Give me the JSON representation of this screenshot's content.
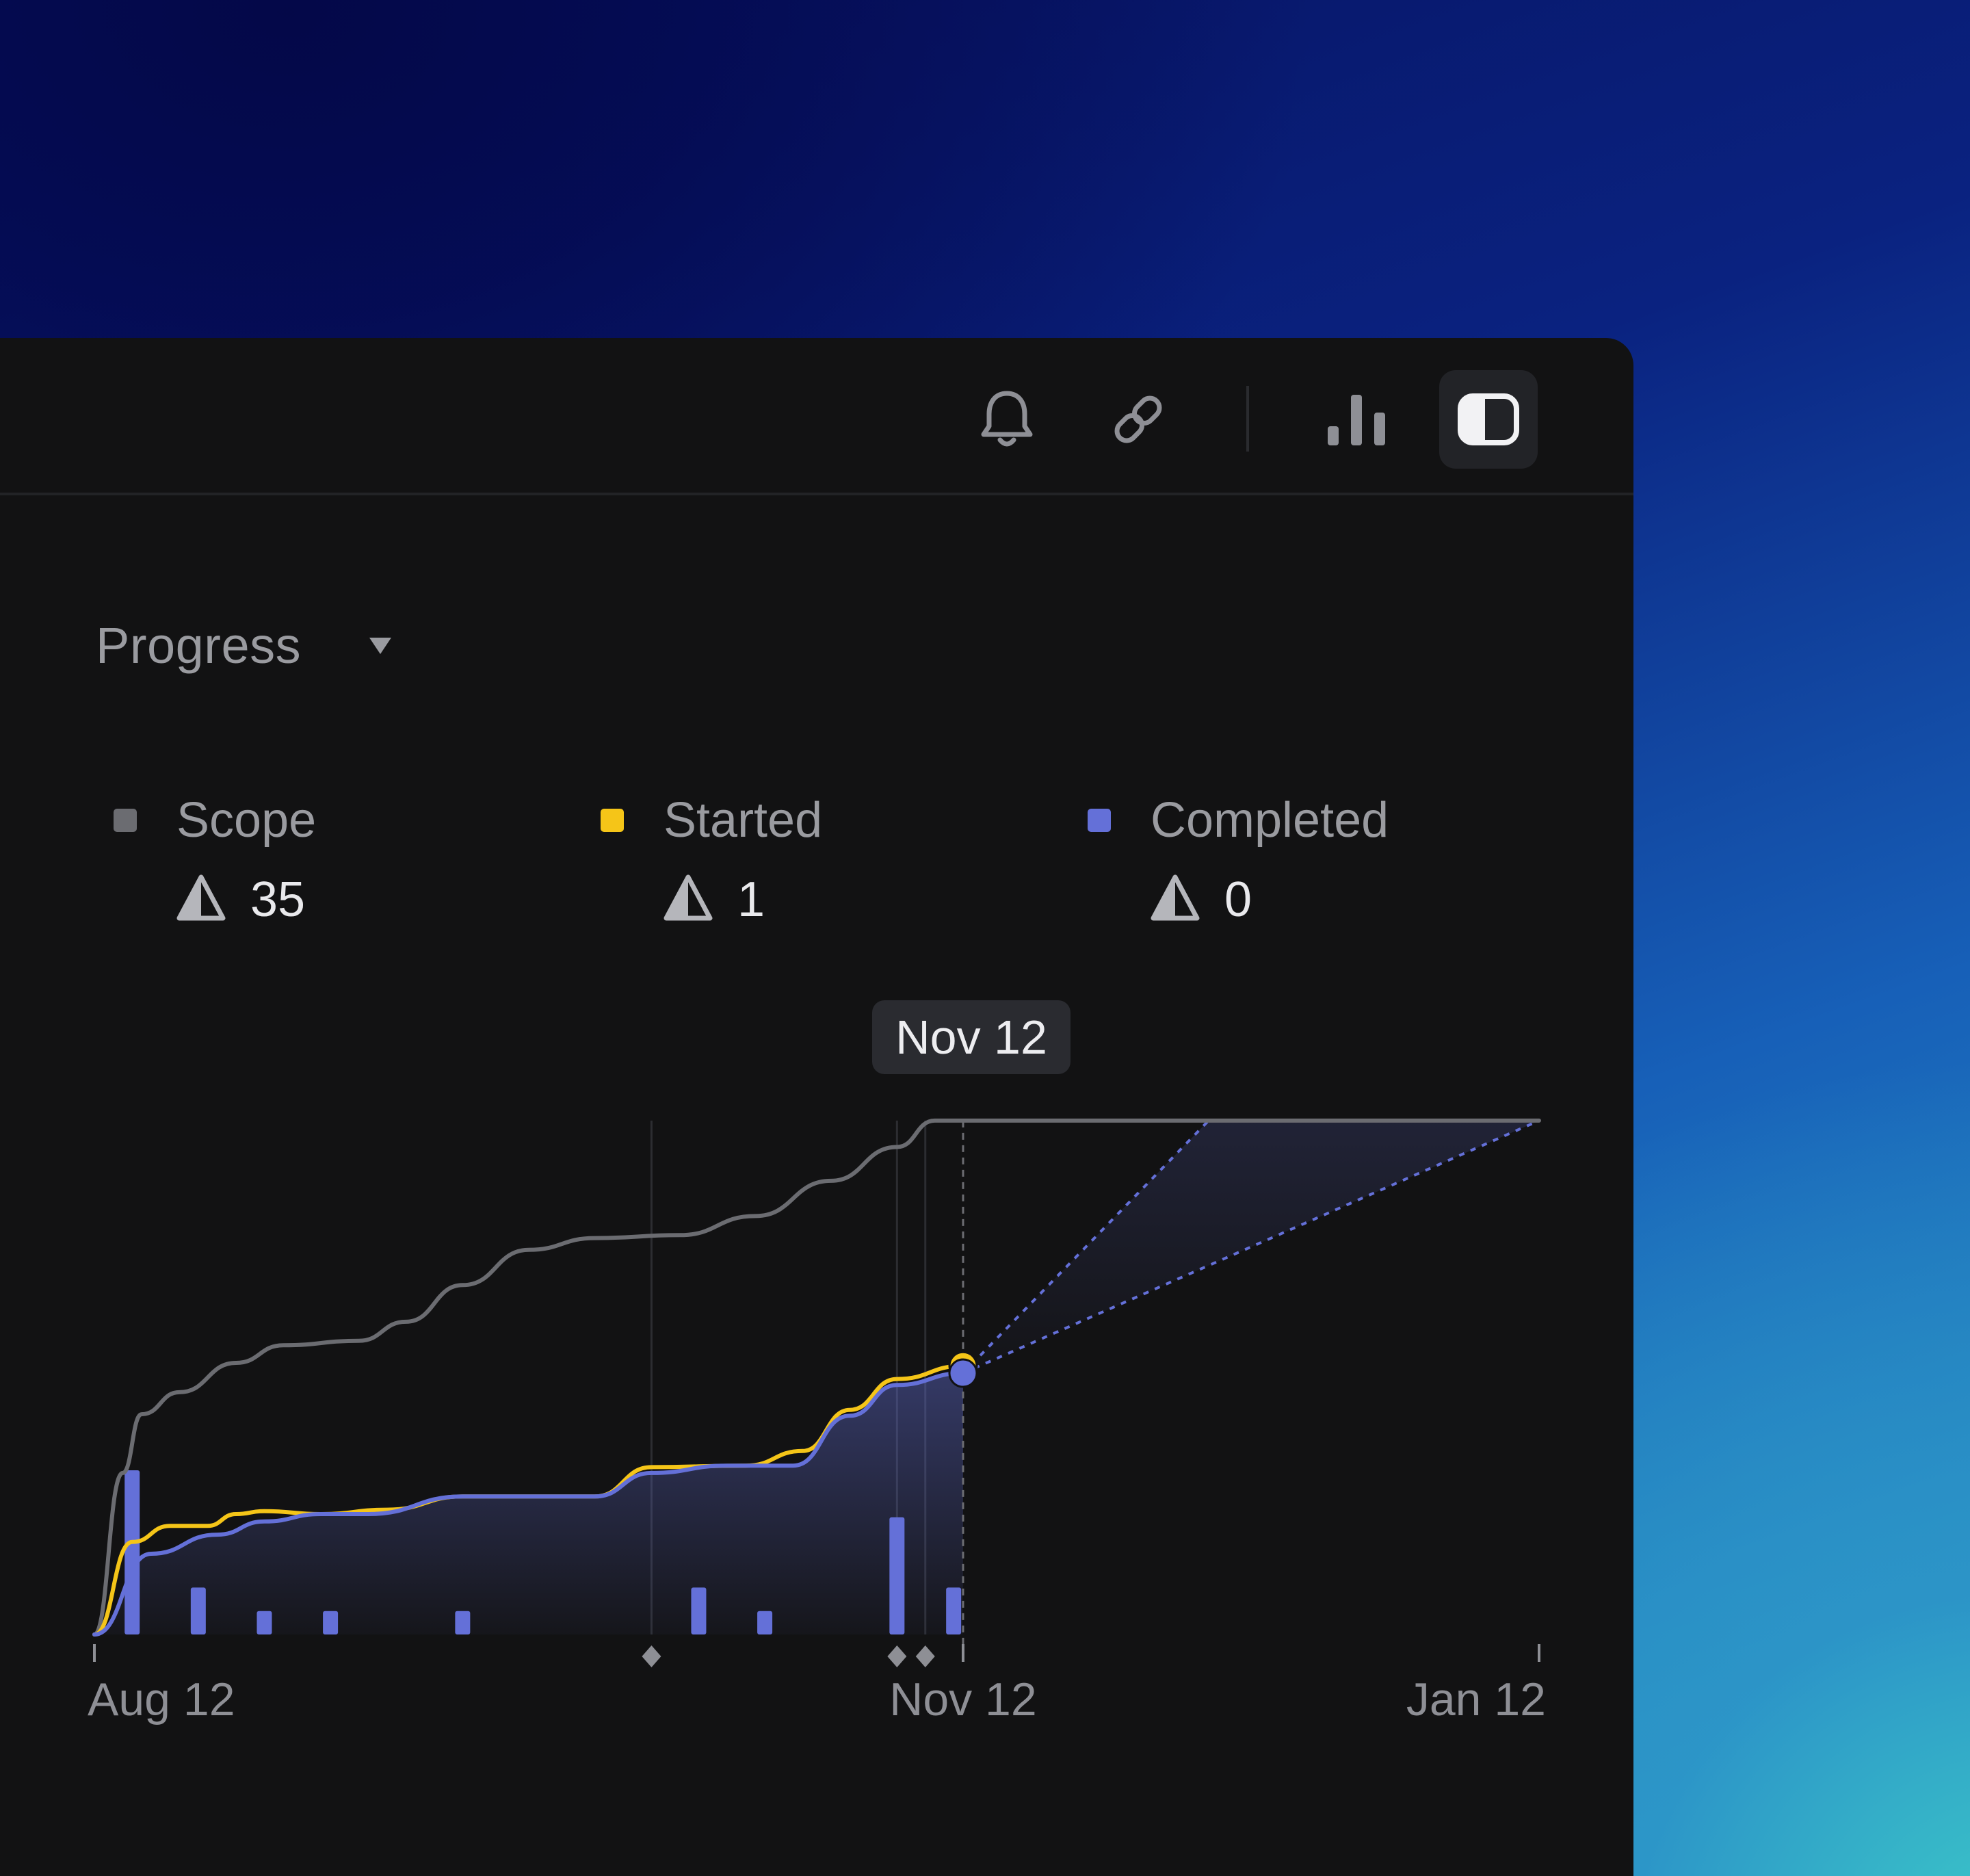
{
  "toolbar": {
    "icons": [
      "bell-icon",
      "link-icon",
      "bar-chart-icon",
      "sidebar-toggle-icon"
    ],
    "active": "sidebar-toggle-icon"
  },
  "progress": {
    "title": "Progress",
    "caret_icon": "caret-down-icon"
  },
  "legend": [
    {
      "label": "Scope",
      "value": "35",
      "color": "#6b6c71",
      "icon": "estimate-icon"
    },
    {
      "label": "Started",
      "value": "1",
      "color": "#f5c518",
      "icon": "estimate-icon"
    },
    {
      "label": "Completed",
      "value": "0",
      "color": "#6470d8",
      "icon": "estimate-icon"
    }
  ],
  "tooltip": {
    "label": "Nov 12"
  },
  "colors": {
    "panel_bg": "#121213",
    "scope": "#6b6c71",
    "started": "#f5c518",
    "completed": "#6470d8",
    "projection": "#6470d8",
    "text_muted": "#9a9ba0",
    "text_strong": "#e9e9ec"
  },
  "chart_data": {
    "type": "line",
    "x_axis": {
      "type": "date",
      "tick_labels": [
        "Aug 12",
        "Nov 12",
        "Jan 12"
      ],
      "ticks": [
        "2024-08-12",
        "2024-11-12",
        "2025-01-12"
      ],
      "range": [
        "2024-08-12",
        "2025-01-12"
      ]
    },
    "y_axis": {
      "range": [
        0,
        37
      ],
      "visible": false
    },
    "current_date": "2024-11-12",
    "series": [
      {
        "name": "Scope",
        "color": "#6b6c71",
        "points": [
          [
            "2024-08-12",
            0
          ],
          [
            "2024-08-15",
            11
          ],
          [
            "2024-08-17",
            15
          ],
          [
            "2024-08-21",
            16.5
          ],
          [
            "2024-08-27",
            18.5
          ],
          [
            "2024-09-01",
            19.7
          ],
          [
            "2024-09-09",
            20.0
          ],
          [
            "2024-09-14",
            21.3
          ],
          [
            "2024-09-20",
            23.8
          ],
          [
            "2024-09-27",
            26.2
          ],
          [
            "2024-10-04",
            27.0
          ],
          [
            "2024-10-13",
            27.2
          ],
          [
            "2024-10-21",
            28.5
          ],
          [
            "2024-10-29",
            30.9
          ],
          [
            "2024-11-05",
            33.2
          ],
          [
            "2024-11-09",
            35
          ],
          [
            "2025-01-12",
            35
          ]
        ]
      },
      {
        "name": "Started",
        "color": "#f5c518",
        "points": [
          [
            "2024-08-12",
            0
          ],
          [
            "2024-08-16",
            6.3
          ],
          [
            "2024-08-20",
            7.4
          ],
          [
            "2024-08-24",
            7.4
          ],
          [
            "2024-08-27",
            8.2
          ],
          [
            "2024-08-30",
            8.4
          ],
          [
            "2024-09-05",
            8.2
          ],
          [
            "2024-09-12",
            8.5
          ],
          [
            "2024-09-20",
            9.4
          ],
          [
            "2024-10-04",
            9.4
          ],
          [
            "2024-10-10",
            11.4
          ],
          [
            "2024-10-20",
            11.5
          ],
          [
            "2024-10-26",
            12.5
          ],
          [
            "2024-10-31",
            15.3
          ],
          [
            "2024-11-05",
            17.4
          ],
          [
            "2024-11-12",
            18.3
          ]
        ]
      },
      {
        "name": "Completed",
        "color": "#6470d8",
        "points": [
          [
            "2024-08-12",
            0
          ],
          [
            "2024-08-18",
            5.5
          ],
          [
            "2024-08-25",
            6.8
          ],
          [
            "2024-08-30",
            7.7
          ],
          [
            "2024-09-05",
            8.2
          ],
          [
            "2024-09-10",
            8.2
          ],
          [
            "2024-09-20",
            9.4
          ],
          [
            "2024-10-04",
            9.4
          ],
          [
            "2024-10-10",
            11.0
          ],
          [
            "2024-10-18",
            11.5
          ],
          [
            "2024-10-25",
            11.5
          ],
          [
            "2024-10-31",
            14.9
          ],
          [
            "2024-11-05",
            17.0
          ],
          [
            "2024-11-12",
            17.8
          ]
        ]
      }
    ],
    "bars": {
      "name": "Completed per day",
      "color": "#6470d8",
      "points": [
        [
          "2024-08-16",
          7.0
        ],
        [
          "2024-08-23",
          2.0
        ],
        [
          "2024-08-30",
          1.0
        ],
        [
          "2024-09-06",
          1.0
        ],
        [
          "2024-09-20",
          1.0
        ],
        [
          "2024-10-15",
          2.0
        ],
        [
          "2024-10-22",
          1.0
        ],
        [
          "2024-11-05",
          5.0
        ],
        [
          "2024-11-11",
          2.0
        ]
      ]
    },
    "projections": [
      {
        "from": [
          "2024-11-12",
          17.8
        ],
        "to": [
          "2024-12-08",
          35
        ]
      },
      {
        "from": [
          "2024-11-12",
          17.8
        ],
        "to": [
          "2025-01-12",
          35
        ]
      }
    ],
    "milestones": [
      "2024-10-10",
      "2024-11-05",
      "2024-11-08"
    ],
    "grid": false
  }
}
